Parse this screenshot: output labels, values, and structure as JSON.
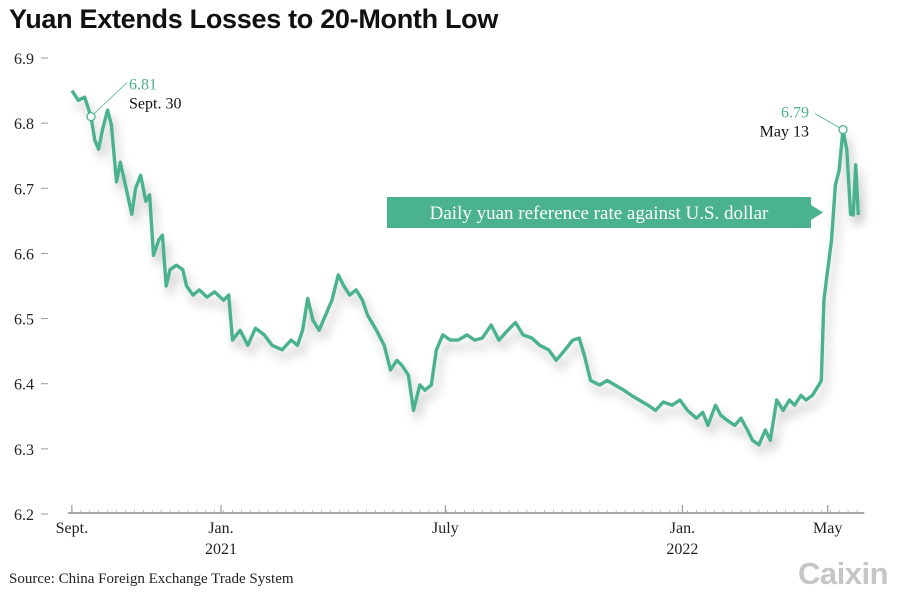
{
  "title": "Yuan Extends Losses to 20-Month Low",
  "source": "Source: China Foreign Exchange Trade System",
  "logo": "Caixin",
  "colors": {
    "line": "#4bb28e",
    "callout_bg": "#4bb28e",
    "text": "#222222",
    "annotation_value": "#4bb28e"
  },
  "chart_data": {
    "type": "line",
    "title": "Yuan Extends Losses to 20-Month Low",
    "ylim": [
      6.2,
      6.9
    ],
    "yticks": [
      "6.9",
      "6.8",
      "6.7",
      "6.6",
      "6.5",
      "6.4",
      "6.3",
      "6.2"
    ],
    "grid": false,
    "xticks": [
      {
        "date": "2020-09-15",
        "label": "Sept.",
        "sub": ""
      },
      {
        "date": "2021-01-10",
        "label": "Jan.",
        "sub": "2021"
      },
      {
        "date": "2021-07-05",
        "label": "July",
        "sub": ""
      },
      {
        "date": "2022-01-07",
        "label": "Jan.",
        "sub": "2022"
      },
      {
        "date": "2022-05-01",
        "label": "May",
        "sub": ""
      }
    ],
    "callout": "Daily yuan reference rate against U.S. dollar",
    "annotations": [
      {
        "date": "2020-09-30",
        "value": 6.81,
        "value_label": "6.81",
        "date_label": "Sept. 30"
      },
      {
        "date": "2022-05-13",
        "value": 6.79,
        "value_label": "6.79",
        "date_label": "May 13"
      }
    ],
    "series": [
      {
        "points": [
          [
            "2020-09-15",
            6.85
          ],
          [
            "2020-09-20",
            6.835
          ],
          [
            "2020-09-25",
            6.84
          ],
          [
            "2020-09-30",
            6.81
          ],
          [
            "2020-10-03",
            6.774
          ],
          [
            "2020-10-06",
            6.76
          ],
          [
            "2020-10-09",
            6.79
          ],
          [
            "2020-10-13",
            6.82
          ],
          [
            "2020-10-16",
            6.797
          ],
          [
            "2020-10-20",
            6.71
          ],
          [
            "2020-10-23",
            6.74
          ],
          [
            "2020-10-27",
            6.705
          ],
          [
            "2020-11-01",
            6.66
          ],
          [
            "2020-11-04",
            6.7
          ],
          [
            "2020-11-08",
            6.72
          ],
          [
            "2020-11-12",
            6.68
          ],
          [
            "2020-11-15",
            6.69
          ],
          [
            "2020-11-18",
            6.597
          ],
          [
            "2020-11-22",
            6.62
          ],
          [
            "2020-11-25",
            6.628
          ],
          [
            "2020-11-28",
            6.55
          ],
          [
            "2020-12-01",
            6.575
          ],
          [
            "2020-12-06",
            6.582
          ],
          [
            "2020-12-11",
            6.575
          ],
          [
            "2020-12-14",
            6.55
          ],
          [
            "2020-12-19",
            6.536
          ],
          [
            "2020-12-24",
            6.544
          ],
          [
            "2020-12-30",
            6.533
          ],
          [
            "2021-01-05",
            6.541
          ],
          [
            "2021-01-12",
            6.528
          ],
          [
            "2021-01-16",
            6.536
          ],
          [
            "2021-01-19",
            6.467
          ],
          [
            "2021-01-25",
            6.482
          ],
          [
            "2021-01-31",
            6.459
          ],
          [
            "2021-02-06",
            6.485
          ],
          [
            "2021-02-13",
            6.475
          ],
          [
            "2021-02-19",
            6.459
          ],
          [
            "2021-02-27",
            6.452
          ],
          [
            "2021-03-06",
            6.467
          ],
          [
            "2021-03-11",
            6.459
          ],
          [
            "2021-03-15",
            6.482
          ],
          [
            "2021-03-19",
            6.531
          ],
          [
            "2021-03-23",
            6.498
          ],
          [
            "2021-03-28",
            6.482
          ],
          [
            "2021-04-02",
            6.505
          ],
          [
            "2021-04-07",
            6.528
          ],
          [
            "2021-04-12",
            6.567
          ],
          [
            "2021-04-16",
            6.551
          ],
          [
            "2021-04-21",
            6.536
          ],
          [
            "2021-04-26",
            6.544
          ],
          [
            "2021-05-01",
            6.528
          ],
          [
            "2021-05-05",
            6.505
          ],
          [
            "2021-05-12",
            6.482
          ],
          [
            "2021-05-18",
            6.459
          ],
          [
            "2021-05-23",
            6.421
          ],
          [
            "2021-05-28",
            6.436
          ],
          [
            "2021-06-01",
            6.428
          ],
          [
            "2021-06-06",
            6.413
          ],
          [
            "2021-06-10",
            6.359
          ],
          [
            "2021-06-15",
            6.398
          ],
          [
            "2021-06-19",
            6.39
          ],
          [
            "2021-06-24",
            6.398
          ],
          [
            "2021-06-28",
            6.452
          ],
          [
            "2021-07-03",
            6.475
          ],
          [
            "2021-07-09",
            6.467
          ],
          [
            "2021-07-15",
            6.467
          ],
          [
            "2021-07-22",
            6.475
          ],
          [
            "2021-07-28",
            6.467
          ],
          [
            "2021-08-03",
            6.47
          ],
          [
            "2021-08-10",
            6.49
          ],
          [
            "2021-08-16",
            6.467
          ],
          [
            "2021-08-23",
            6.482
          ],
          [
            "2021-08-29",
            6.494
          ],
          [
            "2021-09-04",
            6.475
          ],
          [
            "2021-09-11",
            6.47
          ],
          [
            "2021-09-17",
            6.459
          ],
          [
            "2021-09-24",
            6.452
          ],
          [
            "2021-09-30",
            6.436
          ],
          [
            "2021-10-07",
            6.452
          ],
          [
            "2021-10-13",
            6.467
          ],
          [
            "2021-10-18",
            6.47
          ],
          [
            "2021-10-22",
            6.444
          ],
          [
            "2021-10-27",
            6.405
          ],
          [
            "2021-11-03",
            6.398
          ],
          [
            "2021-11-09",
            6.405
          ],
          [
            "2021-11-15",
            6.398
          ],
          [
            "2021-11-22",
            6.39
          ],
          [
            "2021-11-28",
            6.382
          ],
          [
            "2021-12-04",
            6.375
          ],
          [
            "2021-12-11",
            6.367
          ],
          [
            "2021-12-17",
            6.359
          ],
          [
            "2021-12-23",
            6.372
          ],
          [
            "2021-12-30",
            6.367
          ],
          [
            "2022-01-05",
            6.375
          ],
          [
            "2022-01-11",
            6.359
          ],
          [
            "2022-01-18",
            6.347
          ],
          [
            "2022-01-23",
            6.356
          ],
          [
            "2022-01-27",
            6.336
          ],
          [
            "2022-02-02",
            6.367
          ],
          [
            "2022-02-06",
            6.352
          ],
          [
            "2022-02-11",
            6.344
          ],
          [
            "2022-02-17",
            6.336
          ],
          [
            "2022-02-22",
            6.347
          ],
          [
            "2022-02-27",
            6.329
          ],
          [
            "2022-03-03",
            6.313
          ],
          [
            "2022-03-08",
            6.306
          ],
          [
            "2022-03-13",
            6.329
          ],
          [
            "2022-03-17",
            6.313
          ],
          [
            "2022-03-22",
            6.375
          ],
          [
            "2022-03-27",
            6.359
          ],
          [
            "2022-04-01",
            6.375
          ],
          [
            "2022-04-05",
            6.367
          ],
          [
            "2022-04-10",
            6.382
          ],
          [
            "2022-04-14",
            6.375
          ],
          [
            "2022-04-19",
            6.382
          ],
          [
            "2022-04-24",
            6.398
          ],
          [
            "2022-04-26",
            6.405
          ],
          [
            "2022-04-28",
            6.528
          ],
          [
            "2022-04-30",
            6.559
          ],
          [
            "2022-05-04",
            6.62
          ],
          [
            "2022-05-07",
            6.705
          ],
          [
            "2022-05-10",
            6.728
          ],
          [
            "2022-05-13",
            6.79
          ],
          [
            "2022-05-16",
            6.759
          ],
          [
            "2022-05-19",
            6.66
          ],
          [
            "2022-05-21",
            6.659
          ],
          [
            "2022-05-23",
            6.736
          ],
          [
            "2022-05-25",
            6.659
          ]
        ]
      }
    ]
  }
}
